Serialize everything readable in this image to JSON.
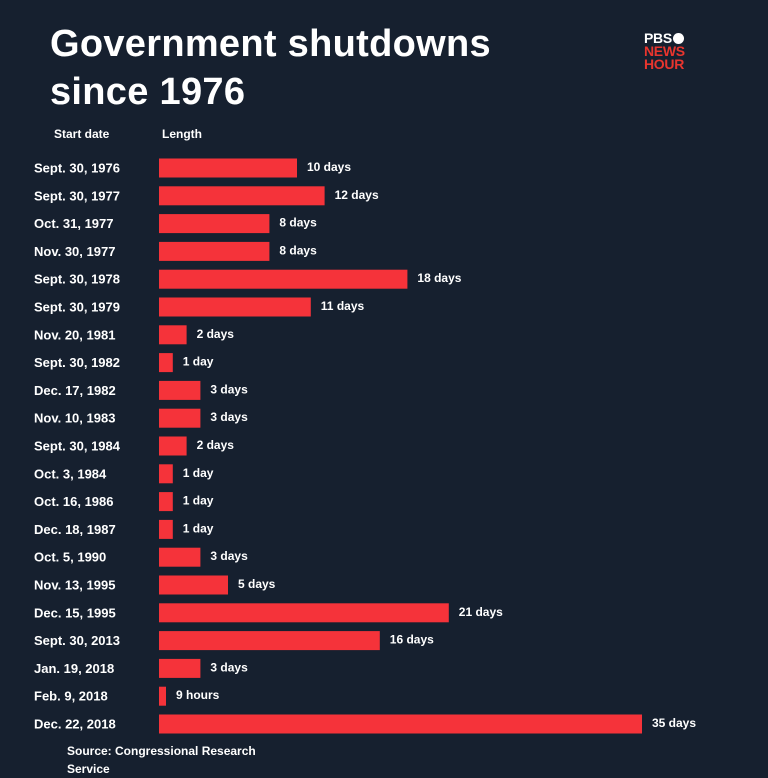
{
  "header": {
    "title_line1": "Government shutdowns",
    "title_line2": "since 1976"
  },
  "logo": {
    "line1": "PBS",
    "line2": "NEWS",
    "line3": "HOUR"
  },
  "columns": {
    "start": "Start date",
    "length": "Length"
  },
  "source": "Source: Congressional Research Service",
  "colors": {
    "background": "#16202f",
    "bar": "#f5333a",
    "brand_red": "#e8352e"
  },
  "chart_data": {
    "type": "bar",
    "orientation": "horizontal",
    "title": "Government shutdowns since 1976",
    "xlabel": "Length",
    "ylabel": "Start date",
    "unit": "days",
    "categories": [
      "Sept. 30, 1976",
      "Sept. 30, 1977",
      "Oct. 31, 1977",
      "Nov. 30, 1977",
      "Sept. 30, 1978",
      "Sept. 30, 1979",
      "Nov. 20, 1981",
      "Sept. 30, 1982",
      "Dec. 17, 1982",
      "Nov. 10, 1983",
      "Sept. 30, 1984",
      "Oct. 3, 1984",
      "Oct. 16, 1986",
      "Dec. 18, 1987",
      "Oct. 5, 1990",
      "Nov. 13, 1995",
      "Dec. 15, 1995",
      "Sept. 30, 2013",
      "Jan. 19, 2018",
      "Feb. 9, 2018",
      "Dec. 22, 2018"
    ],
    "values": [
      10,
      12,
      8,
      8,
      18,
      11,
      2,
      1,
      3,
      3,
      2,
      1,
      1,
      1,
      3,
      5,
      21,
      16,
      3,
      0.375,
      35
    ],
    "value_labels": [
      "10 days",
      "12 days",
      "8 days",
      "8 days",
      "18 days",
      "11 days",
      "2 days",
      "1 day",
      "3 days",
      "3 days",
      "2 days",
      "1 day",
      "1 day",
      "1 day",
      "3 days",
      "5 days",
      "21 days",
      "16 days",
      "3 days",
      "9 hours",
      "35  days"
    ],
    "xlim": [
      0,
      35
    ],
    "grid": false,
    "legend": "none"
  }
}
